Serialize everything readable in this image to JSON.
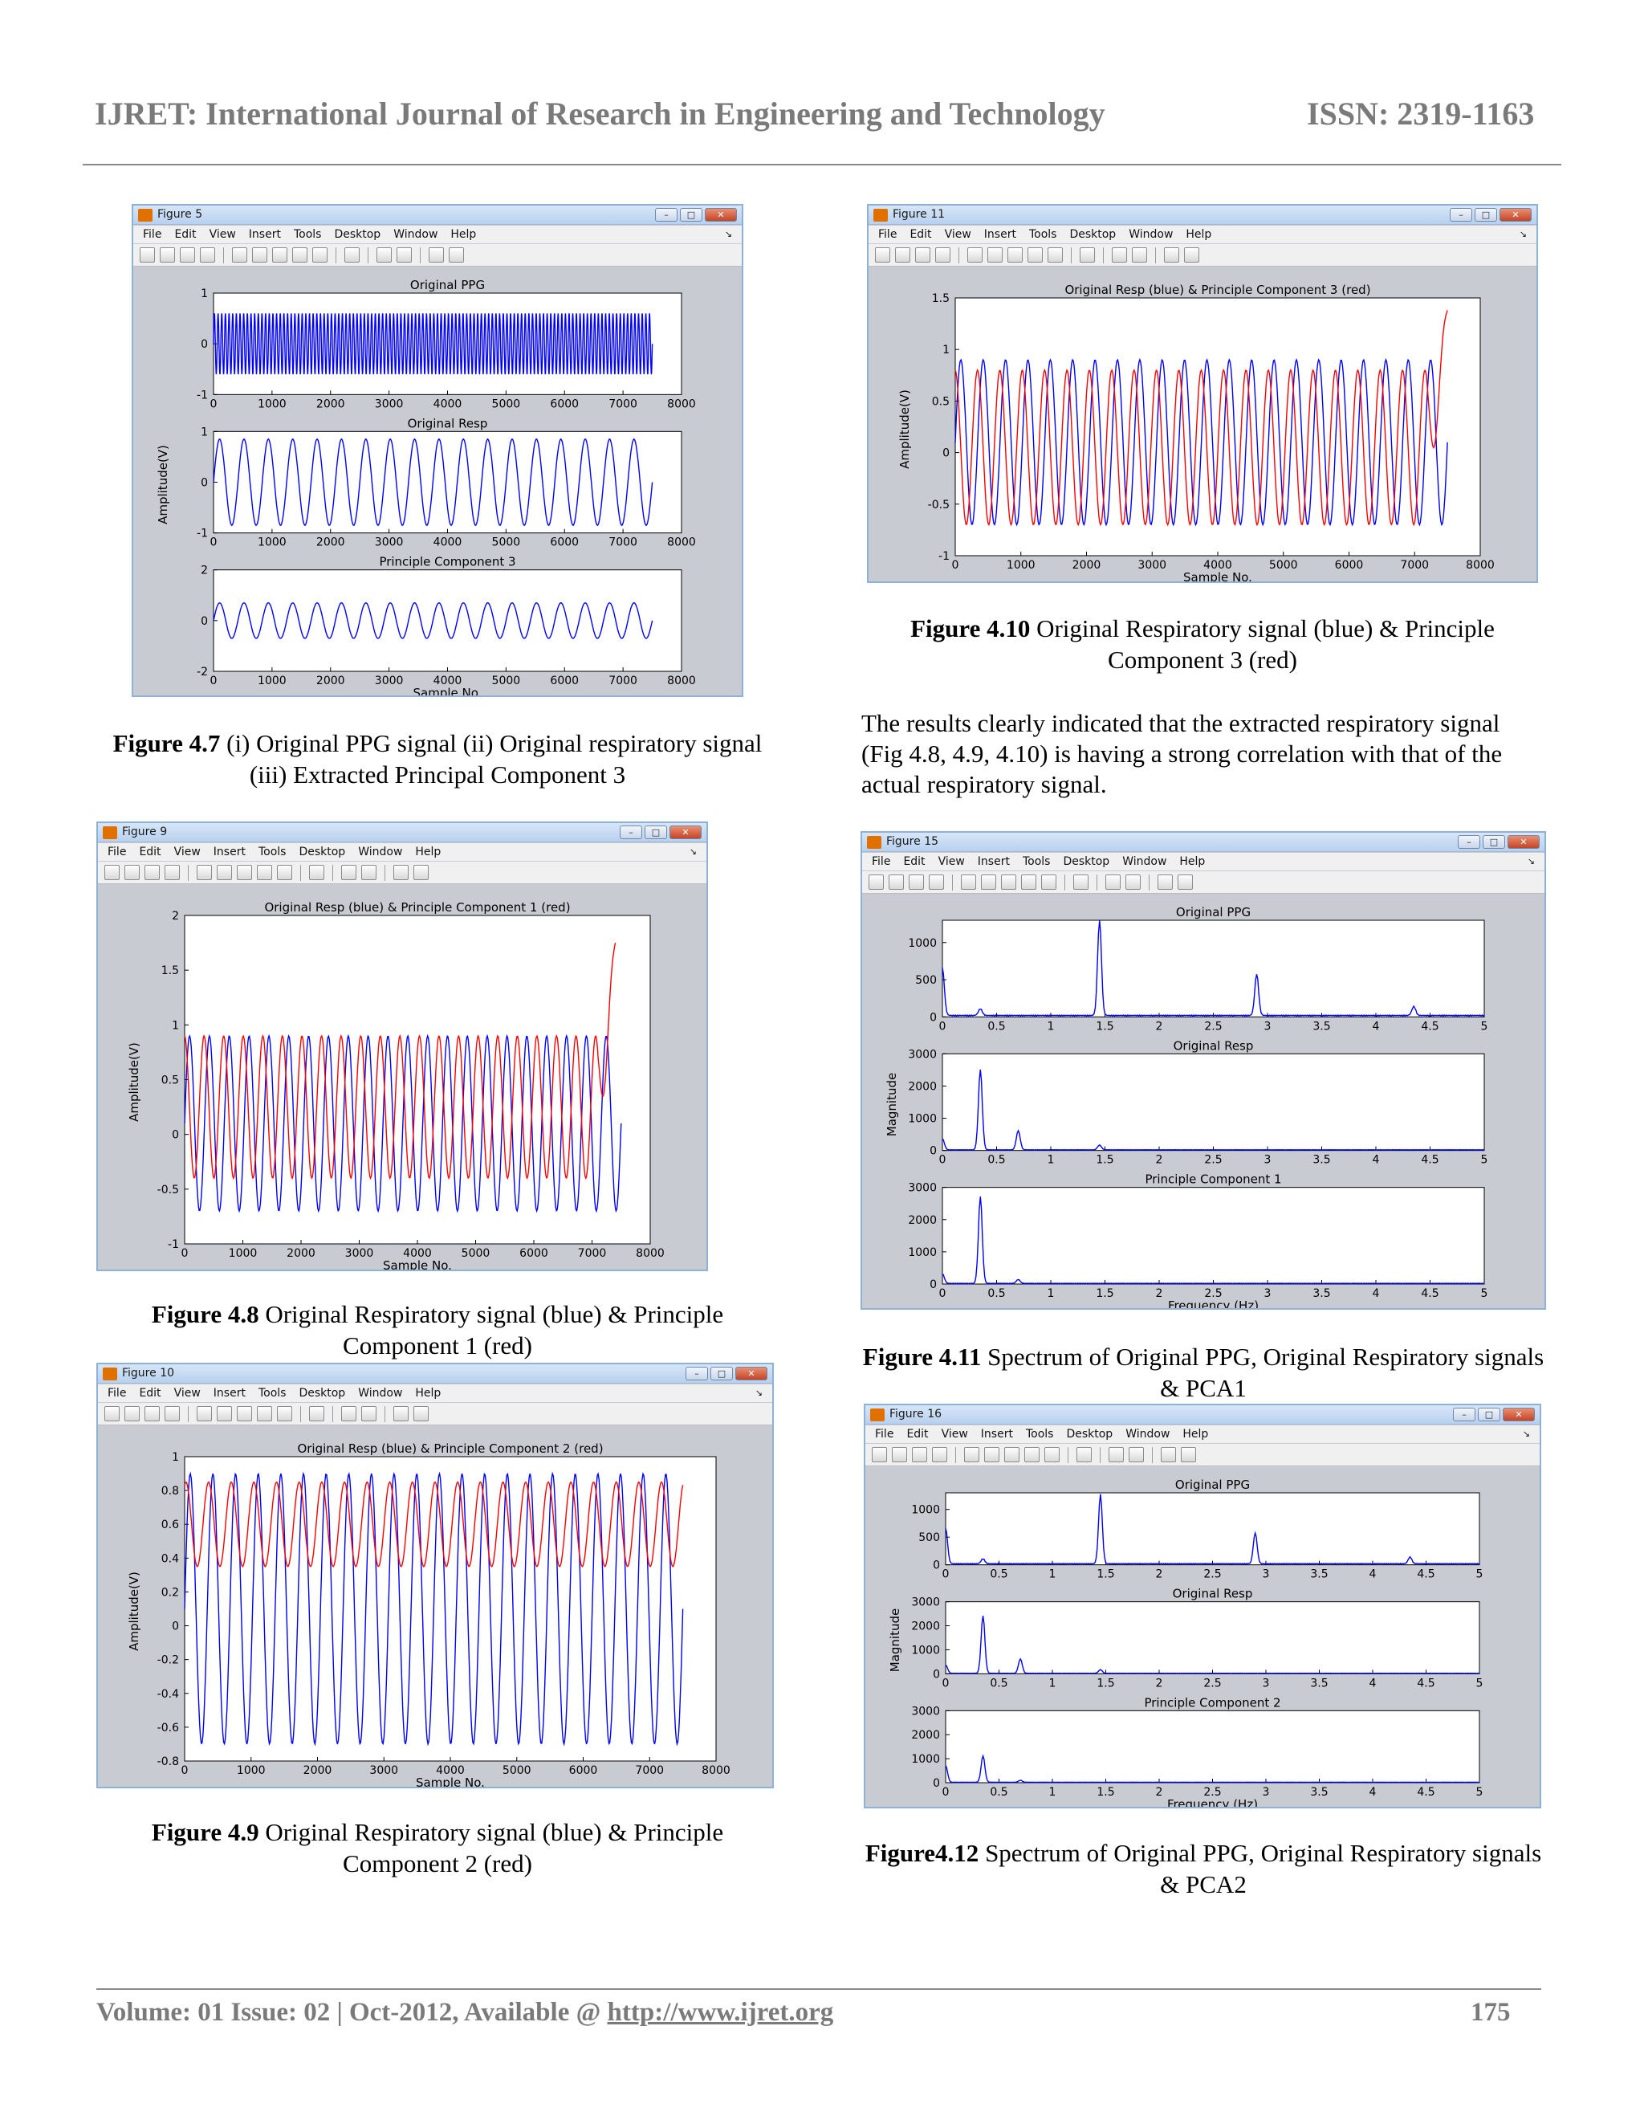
{
  "header": {
    "journal": "IJRET: International Journal of Research in Engineering and Technology",
    "issn": "ISSN: 2319-1163"
  },
  "menu": [
    "File",
    "Edit",
    "View",
    "Insert",
    "Tools",
    "Desktop",
    "Window",
    "Help"
  ],
  "window_buttons": [
    "–",
    "□",
    "✕"
  ],
  "figures": [
    {
      "id": "fig47",
      "window_title": "Figure 5",
      "caption_bold": "Figure 4.7",
      "caption_rest": " (i) Original PPG signal  (ii) Original respiratory signal  (iii) Extracted  Principal Component 3",
      "chart_data": {
        "type": "line",
        "ylabel": "Amplitude(V)",
        "subplots": [
          {
            "title": "Original PPG",
            "xlim": [
              0,
              8000
            ],
            "ylim": [
              -1,
              1
            ],
            "xticks": [
              0,
              1000,
              2000,
              3000,
              4000,
              5000,
              6000,
              7000,
              8000
            ],
            "yticks": [
              -1,
              0,
              1
            ],
            "series": [
              {
                "color": "#0000ff",
                "signal": {
                  "periods": 120,
                  "amplitude": 0.6,
                  "x_end": 7500
                }
              }
            ]
          },
          {
            "title": "Original Resp",
            "xlim": [
              0,
              8000
            ],
            "ylim": [
              -1,
              1
            ],
            "xticks": [
              0,
              1000,
              2000,
              3000,
              4000,
              5000,
              6000,
              7000,
              8000
            ],
            "yticks": [
              -1,
              0,
              1
            ],
            "series": [
              {
                "color": "#0000ff",
                "signal": {
                  "periods": 18,
                  "amplitude": 0.85,
                  "x_end": 7500
                }
              }
            ]
          },
          {
            "title": "Principle Component 3",
            "xlabel": "Sample No.",
            "xlim": [
              0,
              8000
            ],
            "ylim": [
              -2,
              2
            ],
            "xticks": [
              0,
              1000,
              2000,
              3000,
              4000,
              5000,
              6000,
              7000,
              8000
            ],
            "yticks": [
              -2,
              0,
              2
            ],
            "series": [
              {
                "color": "#0000ff",
                "signal": {
                  "periods": 18,
                  "amplitude": 0.7,
                  "x_end": 7500
                }
              }
            ]
          }
        ]
      }
    },
    {
      "id": "fig48",
      "window_title": "Figure 9",
      "caption_bold": "Figure 4.8",
      "caption_rest": " Original Respiratory signal (blue) & Principle Component 1 (red)",
      "chart_data": {
        "type": "line",
        "ylabel": "Amplitude(V)",
        "subplots": [
          {
            "title": "Original Resp (blue) & Principle Component 1 (red)",
            "xlabel": "Sample No.",
            "xlim": [
              0,
              8000
            ],
            "ylim": [
              -1,
              2
            ],
            "xticks": [
              0,
              1000,
              2000,
              3000,
              4000,
              5000,
              6000,
              7000,
              8000
            ],
            "yticks": [
              -1,
              -0.5,
              0,
              0.5,
              1,
              1.5,
              2
            ],
            "series": [
              {
                "name": "Original Resp",
                "color": "#0000ff",
                "signal": {
                  "periods": 22,
                  "amplitude": 0.8,
                  "offset": 0.1,
                  "x_end": 7500
                }
              },
              {
                "name": "Principle Component 1",
                "color": "#ff0000",
                "signal": {
                  "periods": 22,
                  "amplitude": 0.65,
                  "offset": 0.25,
                  "phase": 1.6,
                  "x_end": 7400,
                  "end_value": 1.75
                }
              }
            ]
          }
        ]
      }
    },
    {
      "id": "fig49",
      "window_title": "Figure 10",
      "caption_bold": "Figure 4.9",
      "caption_rest": " Original Respiratory signal (blue) & Principle Component 2 (red)",
      "chart_data": {
        "type": "line",
        "ylabel": "Amplitude(V)",
        "subplots": [
          {
            "title": "Original Resp (blue) & Principle Component 2 (red)",
            "xlabel": "Sample No.",
            "xlim": [
              0,
              8000
            ],
            "ylim": [
              -0.8,
              1
            ],
            "xticks": [
              0,
              1000,
              2000,
              3000,
              4000,
              5000,
              6000,
              7000,
              8000
            ],
            "yticks": [
              -0.8,
              -0.6,
              -0.4,
              -0.2,
              0,
              0.2,
              0.4,
              0.6,
              0.8,
              1
            ],
            "series": [
              {
                "name": "Original Resp",
                "color": "#0000ff",
                "signal": {
                  "periods": 22,
                  "amplitude": 0.8,
                  "offset": 0.1,
                  "x_end": 7500
                }
              },
              {
                "name": "Principle Component 2",
                "color": "#ff0000",
                "signal": {
                  "periods": 22,
                  "amplitude": 0.25,
                  "offset": 0.6,
                  "phase": 1.2,
                  "x_end": 7500
                }
              }
            ]
          }
        ]
      }
    },
    {
      "id": "fig410",
      "window_title": "Figure 11",
      "caption_bold": "Figure 4.10",
      "caption_rest": " Original Respiratory signal (blue) & Principle Component 3 (red)",
      "chart_data": {
        "type": "line",
        "ylabel": "Amplitude(V)",
        "subplots": [
          {
            "title": "Original Resp (blue) & Principle Component 3 (red)",
            "xlabel": "Sample No.",
            "xlim": [
              0,
              8000
            ],
            "ylim": [
              -1,
              1.5
            ],
            "xticks": [
              0,
              1000,
              2000,
              3000,
              4000,
              5000,
              6000,
              7000,
              8000
            ],
            "yticks": [
              -1,
              -0.5,
              0,
              0.5,
              1,
              1.5
            ],
            "series": [
              {
                "name": "Original Resp",
                "color": "#0000ff",
                "signal": {
                  "periods": 22,
                  "amplitude": 0.8,
                  "offset": 0.1,
                  "x_end": 7500
                }
              },
              {
                "name": "Principle Component 3",
                "color": "#ff0000",
                "signal": {
                  "periods": 22,
                  "amplitude": 0.75,
                  "offset": 0.05,
                  "phase": 1.6,
                  "x_end": 7500,
                  "end_value": 1.38
                }
              }
            ]
          }
        ]
      }
    },
    {
      "id": "fig411",
      "window_title": "Figure 15",
      "caption_bold": "Figure 4.11",
      "caption_rest": " Spectrum of Original PPG, Original Respiratory signals & PCA1",
      "chart_data": {
        "type": "line",
        "ylabel": "Magnitude",
        "subplots": [
          {
            "title": "Original PPG",
            "xlim": [
              0,
              5
            ],
            "ylim": [
              0,
              1300
            ],
            "xticks": [
              0,
              0.5,
              1,
              1.5,
              2,
              2.5,
              3,
              3.5,
              4,
              4.5,
              5
            ],
            "yticks": [
              0,
              500,
              1000
            ],
            "series": [
              {
                "color": "#0000ff",
                "peaks": [
                  [
                    0,
                    650
                  ],
                  [
                    0.35,
                    90
                  ],
                  [
                    1.45,
                    1300
                  ],
                  [
                    2.9,
                    560
                  ],
                  [
                    4.35,
                    120
                  ]
                ]
              }
            ]
          },
          {
            "title": "Original Resp",
            "xlim": [
              0,
              5
            ],
            "ylim": [
              0,
              3000
            ],
            "xticks": [
              0,
              0.5,
              1,
              1.5,
              2,
              2.5,
              3,
              3.5,
              4,
              4.5,
              5
            ],
            "yticks": [
              0,
              1000,
              2000,
              3000
            ],
            "series": [
              {
                "color": "#0000ff",
                "peaks": [
                  [
                    0,
                    350
                  ],
                  [
                    0.35,
                    2500
                  ],
                  [
                    0.7,
                    600
                  ],
                  [
                    1.45,
                    150
                  ]
                ]
              }
            ]
          },
          {
            "title": "Principle Component 1",
            "xlabel": "Frequency (Hz)",
            "xlim": [
              0,
              5
            ],
            "ylim": [
              0,
              3000
            ],
            "xticks": [
              0,
              0.5,
              1,
              1.5,
              2,
              2.5,
              3,
              3.5,
              4,
              4.5,
              5
            ],
            "yticks": [
              0,
              1000,
              2000,
              3000
            ],
            "series": [
              {
                "color": "#0000ff",
                "peaks": [
                  [
                    0,
                    300
                  ],
                  [
                    0.35,
                    2700
                  ],
                  [
                    0.7,
                    120
                  ]
                ]
              }
            ]
          }
        ]
      }
    },
    {
      "id": "fig412",
      "window_title": "Figure 16",
      "caption_bold": "Figure4.12",
      "caption_rest": " Spectrum of Original PPG, Original Respiratory signals & PCA2",
      "chart_data": {
        "type": "line",
        "ylabel": "Magnitude",
        "subplots": [
          {
            "title": "Original PPG",
            "xlim": [
              0,
              5
            ],
            "ylim": [
              0,
              1300
            ],
            "xticks": [
              0,
              0.5,
              1,
              1.5,
              2,
              2.5,
              3,
              3.5,
              4,
              4.5,
              5
            ],
            "yticks": [
              0,
              500,
              1000
            ],
            "series": [
              {
                "color": "#0000ff",
                "peaks": [
                  [
                    0,
                    650
                  ],
                  [
                    0.35,
                    90
                  ],
                  [
                    1.45,
                    1250
                  ],
                  [
                    2.9,
                    560
                  ],
                  [
                    4.35,
                    120
                  ]
                ]
              }
            ]
          },
          {
            "title": "Original Resp",
            "xlim": [
              0,
              5
            ],
            "ylim": [
              0,
              3000
            ],
            "xticks": [
              0,
              0.5,
              1,
              1.5,
              2,
              2.5,
              3,
              3.5,
              4,
              4.5,
              5
            ],
            "yticks": [
              0,
              1000,
              2000,
              3000
            ],
            "series": [
              {
                "color": "#0000ff",
                "peaks": [
                  [
                    0,
                    350
                  ],
                  [
                    0.35,
                    2400
                  ],
                  [
                    0.7,
                    600
                  ],
                  [
                    1.45,
                    150
                  ]
                ]
              }
            ]
          },
          {
            "title": "Principle Component 2",
            "xlabel": "Frequency (Hz)",
            "xlim": [
              0,
              5
            ],
            "ylim": [
              0,
              3000
            ],
            "xticks": [
              0,
              0.5,
              1,
              1.5,
              2,
              2.5,
              3,
              3.5,
              4,
              4.5,
              5
            ],
            "yticks": [
              0,
              1000,
              2000,
              3000
            ],
            "series": [
              {
                "color": "#0000ff",
                "peaks": [
                  [
                    0,
                    700
                  ],
                  [
                    0.35,
                    1100
                  ],
                  [
                    0.7,
                    80
                  ]
                ]
              }
            ]
          }
        ]
      }
    }
  ],
  "paragraph": "The results clearly indicated that the extracted respiratory signal (Fig 4.8, 4.9, 4.10) is having a strong correlation with that of the actual respiratory signal.",
  "footer": {
    "volume": "Volume: 01 Issue: 02 | Oct-2012, Available @ ",
    "url": "http://www.ijret.org",
    "page": "175"
  }
}
